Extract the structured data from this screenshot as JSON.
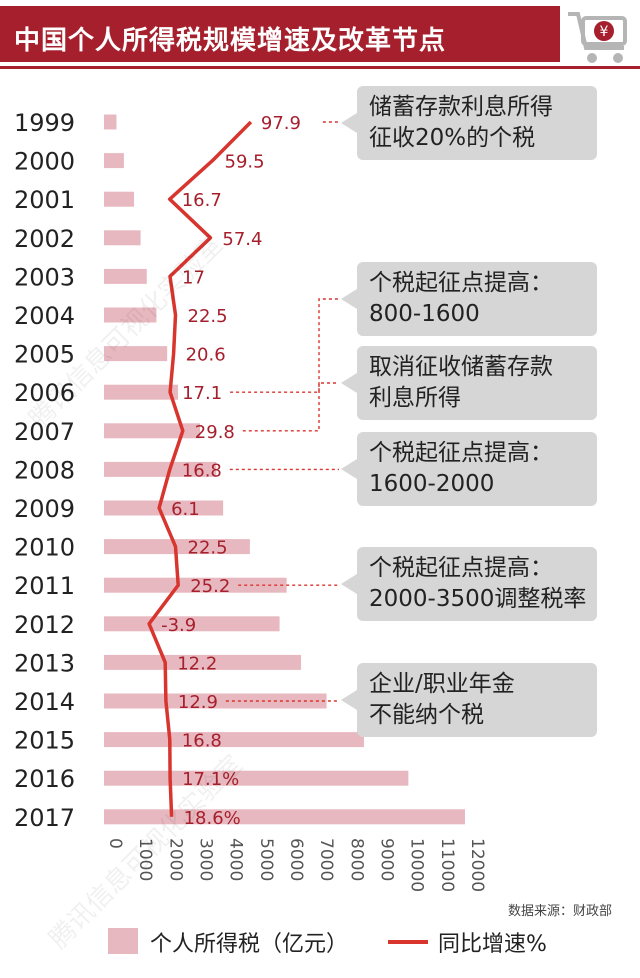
{
  "header": {
    "title": "中国个人所得税规模增速及改革节点",
    "icon": "shopping-cart-yuan-icon"
  },
  "colors": {
    "brand": "#a5202c",
    "bar": "#e8b8c0",
    "line": "#d7352e",
    "label": "#a5202c",
    "callout_bg": "#d6d6d6"
  },
  "chart_data": {
    "type": "bar",
    "orientation": "horizontal",
    "categories": [
      "1999",
      "2000",
      "2001",
      "2002",
      "2003",
      "2004",
      "2005",
      "2006",
      "2007",
      "2008",
      "2009",
      "2010",
      "2011",
      "2012",
      "2013",
      "2014",
      "2015",
      "2016",
      "2017"
    ],
    "series": [
      {
        "name": "个人所得税（亿元）",
        "type": "bar",
        "values": [
          414,
          660,
          996,
          1212,
          1418,
          1737,
          2094,
          2453,
          3186,
          3722,
          3949,
          4837,
          6054,
          5820,
          6532,
          7377,
          8618,
          10089,
          11966
        ]
      },
      {
        "name": "同比增速%",
        "type": "line",
        "values": [
          97.9,
          59.5,
          16.7,
          57.4,
          17,
          22.5,
          20.6,
          17.1,
          29.8,
          16.8,
          6.1,
          22.5,
          25.2,
          -3.9,
          12.2,
          12.9,
          16.8,
          17.1,
          18.6
        ],
        "labels": [
          "97.9",
          "59.5",
          "16.7",
          "57.4",
          "17",
          "22.5",
          "20.6",
          "17.1",
          "29.8",
          "16.8",
          "6.1",
          "22.5",
          "25.2",
          "-3.9",
          "12.2",
          "12.9",
          "16.8",
          "17.1%",
          "18.6%"
        ]
      }
    ],
    "xticks": [
      "0",
      "1000",
      "2000",
      "3000",
      "4000",
      "5000",
      "6000",
      "7000",
      "8000",
      "9000",
      "10000",
      "11000",
      "12000"
    ],
    "xlim": [
      0,
      12000
    ],
    "legend_position": "bottom",
    "annotations": [
      {
        "year": "1999",
        "lines": [
          "储蓄存款利息所得",
          "征收20%的个税"
        ]
      },
      {
        "year": "2006",
        "lines": [
          "个税起征点提高：",
          "800-1600"
        ]
      },
      {
        "year": "2007",
        "lines": [
          "取消征收储蓄存款",
          "利息所得"
        ]
      },
      {
        "year": "2008",
        "lines": [
          "个税起征点提高：",
          "1600-2000"
        ]
      },
      {
        "year": "2011",
        "lines": [
          "个税起征点提高：",
          "2000-3500调整税率"
        ]
      },
      {
        "year": "2014",
        "lines": [
          "企业/职业年金",
          "不能纳个税"
        ]
      }
    ]
  },
  "legend": {
    "bar_label": "个人所得税（亿元）",
    "line_label": "同比增速%"
  },
  "source": "数据来源：财政部",
  "watermark": "腾讯信息可视化实验室"
}
